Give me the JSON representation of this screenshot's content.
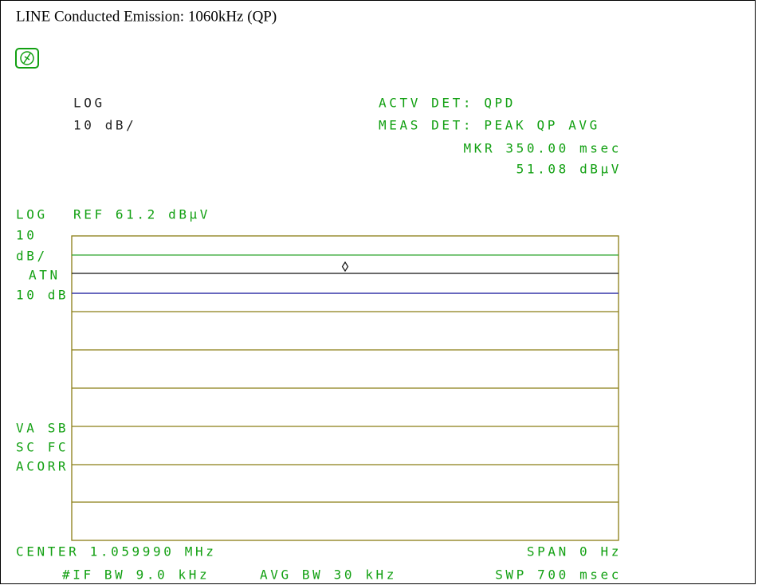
{
  "title": "LINE Conducted Emission: 1060kHz (QP)",
  "header": {
    "scale": "LOG",
    "scale_div": "10 dB/",
    "actv_det": "ACTV DET: QPD",
    "meas_det": "MEAS DET: PEAK QP AVG",
    "marker_time": "MKR 350.00 msec",
    "marker_level": "51.08 dBµV"
  },
  "ref_line": {
    "scale": "LOG",
    "ref": "REF 61.2 dBµV"
  },
  "left_labels": {
    "div_num": "10",
    "div_unit": "dB/",
    "atn": "ATN",
    "atn_value": "10 dB",
    "va_sb": "VA SB",
    "sc_fc": "SC FC",
    "acorr": "ACORR"
  },
  "footer": {
    "center": "CENTER 1.059990 MHz",
    "span": "SPAN 0 Hz",
    "if_bw": "#IF BW 9.0 kHz",
    "avg_bw": "AVG BW 30 kHz",
    "sweep": "SWP 700 msec"
  }
}
